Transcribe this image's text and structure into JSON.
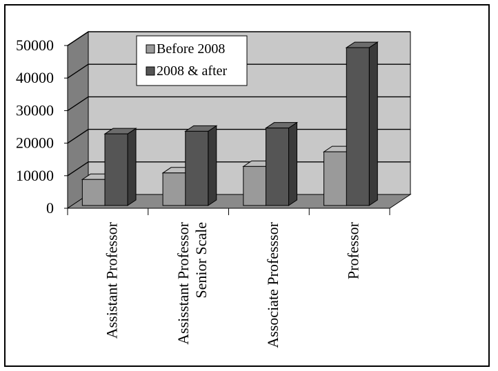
{
  "chart_data": {
    "type": "bar",
    "title": "",
    "xlabel": "",
    "ylabel": "",
    "categories": [
      [
        "Assistant Professor"
      ],
      [
        "Assisstant Professor",
        "Senior Scale"
      ],
      [
        "Associate Professsor"
      ],
      [
        "Professor"
      ]
    ],
    "series": [
      {
        "name": "Before 2008",
        "values": [
          8000,
          10000,
          12000,
          16500
        ],
        "color": "#9a9a9a"
      },
      {
        "name": "2008 & after",
        "values": [
          22000,
          22800,
          23800,
          48500
        ],
        "color": "#555555"
      }
    ],
    "ylim": [
      0,
      50000
    ],
    "yticks": [
      "0",
      "10000",
      "20000",
      "30000",
      "40000",
      "50000"
    ],
    "grid": true,
    "legend_position": "top-left inside plot",
    "colors": {
      "back_wall": "#c8c8c8",
      "side_wall": "#7f7f7f",
      "floor": "#8a8a8a",
      "grid_line": "#000000"
    }
  }
}
